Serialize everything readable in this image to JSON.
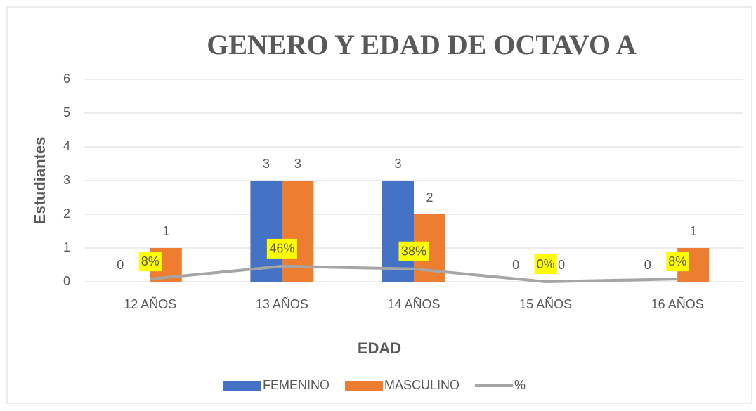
{
  "chart_data": {
    "type": "bar",
    "title": "GENERO Y EDAD DE OCTAVO A",
    "x_label": "EDAD",
    "y_label": "Estudiantes",
    "categories": [
      "12 AÑOS",
      "13 AÑOS",
      "14 AÑOS",
      "15 AÑOS",
      "16 AÑOS"
    ],
    "series": [
      {
        "name": "FEMENINO",
        "type": "bar",
        "color": "#4472c4",
        "values": [
          0,
          3,
          3,
          0,
          0
        ]
      },
      {
        "name": "MASCULINO",
        "type": "bar",
        "color": "#ed7d31",
        "values": [
          1,
          3,
          2,
          0,
          1
        ]
      },
      {
        "name": "%",
        "type": "line",
        "color": "#a5a5a5",
        "values": [
          0.08,
          0.46,
          0.38,
          0,
          0.08
        ],
        "value_labels": [
          "8%",
          "46%",
          "38%",
          "0%",
          "8%"
        ]
      }
    ],
    "ylim": [
      0,
      6
    ],
    "yticks": [
      0,
      1,
      2,
      3,
      4,
      5,
      6
    ],
    "grid": true,
    "legend": "bottom"
  }
}
